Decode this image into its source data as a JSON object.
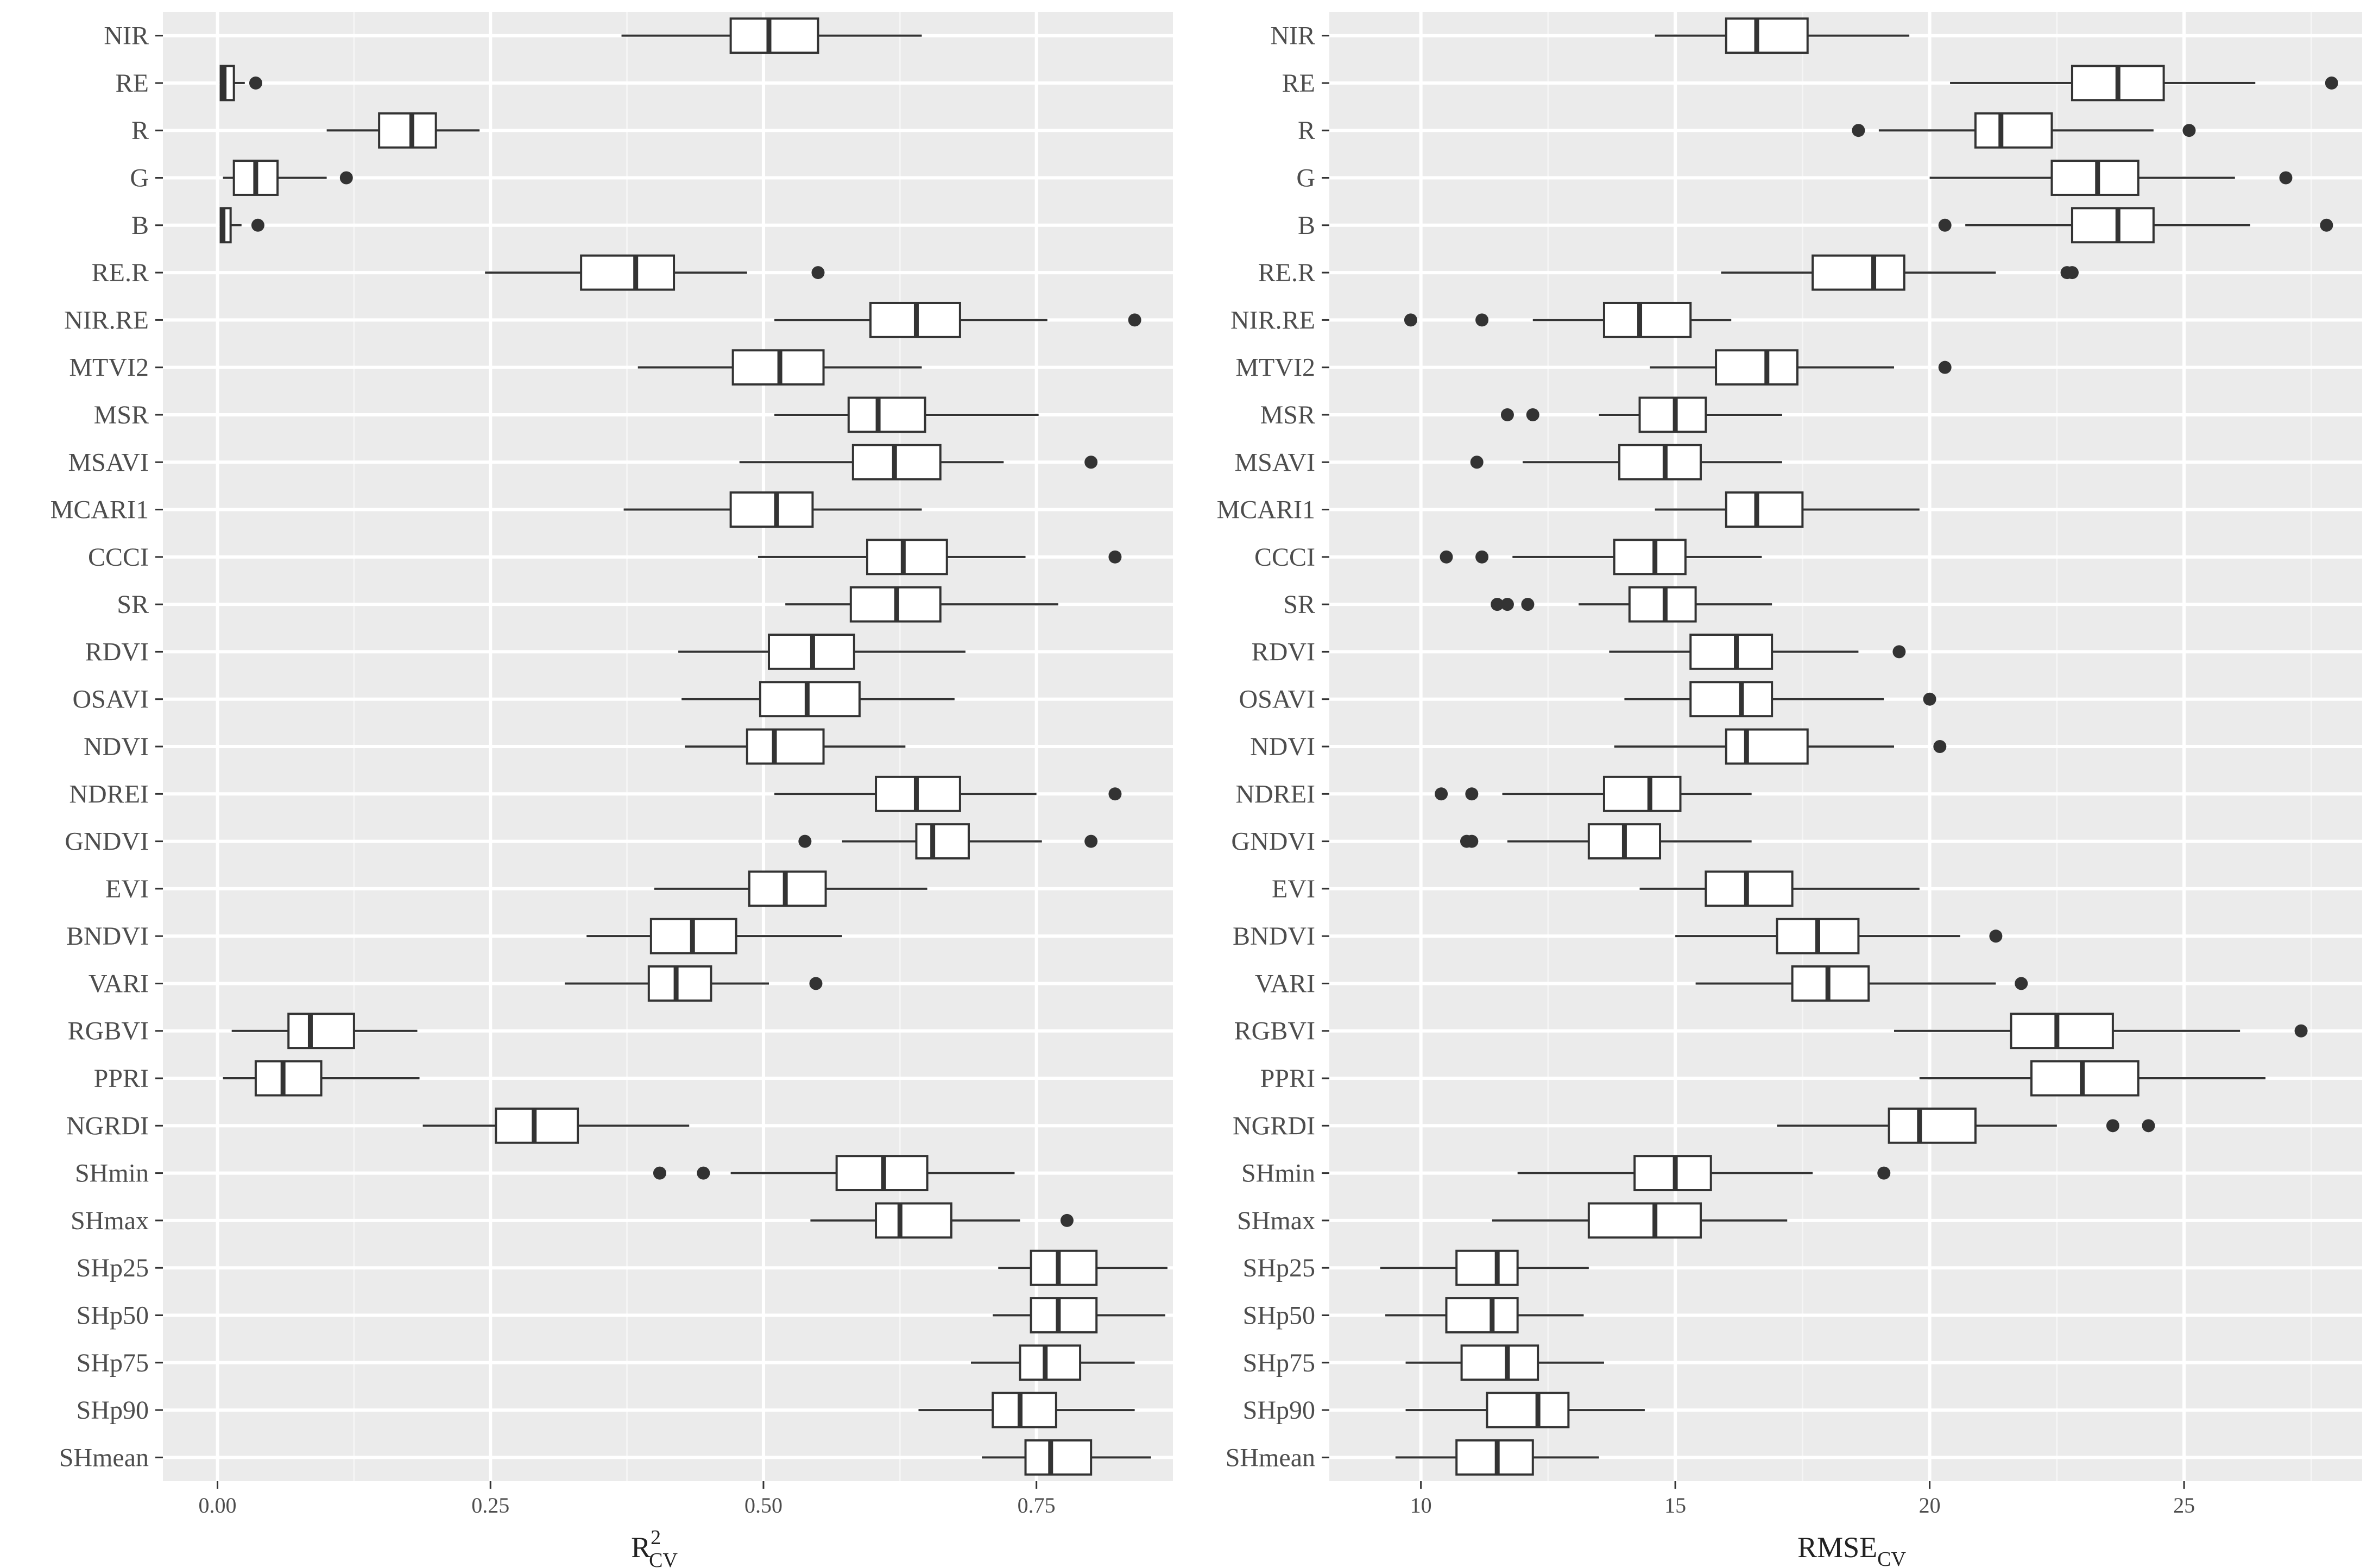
{
  "chart_data": [
    {
      "type": "boxplot",
      "orientation": "horizontal",
      "xlabel": {
        "main": "R",
        "superscript": "2",
        "subscript": "CV"
      },
      "ylabel": "",
      "xlim": [
        -0.05,
        0.875
      ],
      "xticks": [
        0.0,
        0.25,
        0.5,
        0.75
      ],
      "xtick_labels": [
        "0.00",
        "0.25",
        "0.50",
        "0.75"
      ],
      "grid": true,
      "categories": [
        "NIR",
        "RE",
        "R",
        "G",
        "B",
        "RE.R",
        "NIR.RE",
        "MTVI2",
        "MSR",
        "MSAVI",
        "MCARI1",
        "CCCI",
        "SR",
        "RDVI",
        "OSAVI",
        "NDVI",
        "NDREI",
        "GNDVI",
        "EVI",
        "BNDVI",
        "VARI",
        "RGBVI",
        "PPRI",
        "NGRDI",
        "SHmin",
        "SHmax",
        "SHp25",
        "SHp50",
        "SHp75",
        "SHp90",
        "SHmean"
      ],
      "boxes": [
        {
          "lo": 0.37,
          "q1": 0.47,
          "med": 0.505,
          "q3": 0.55,
          "hi": 0.645,
          "out": []
        },
        {
          "lo": 0.002,
          "q1": 0.003,
          "med": 0.006,
          "q3": 0.015,
          "hi": 0.025,
          "out": [
            0.035
          ]
        },
        {
          "lo": 0.1,
          "q1": 0.148,
          "med": 0.178,
          "q3": 0.2,
          "hi": 0.24,
          "out": []
        },
        {
          "lo": 0.005,
          "q1": 0.015,
          "med": 0.035,
          "q3": 0.055,
          "hi": 0.1,
          "out": [
            0.118
          ]
        },
        {
          "lo": 0.002,
          "q1": 0.003,
          "med": 0.005,
          "q3": 0.012,
          "hi": 0.022,
          "out": [
            0.037
          ]
        },
        {
          "lo": 0.245,
          "q1": 0.333,
          "med": 0.383,
          "q3": 0.418,
          "hi": 0.485,
          "out": [
            0.55
          ]
        },
        {
          "lo": 0.51,
          "q1": 0.598,
          "med": 0.64,
          "q3": 0.68,
          "hi": 0.76,
          "out": [
            0.84
          ]
        },
        {
          "lo": 0.385,
          "q1": 0.472,
          "med": 0.515,
          "q3": 0.555,
          "hi": 0.645,
          "out": []
        },
        {
          "lo": 0.51,
          "q1": 0.578,
          "med": 0.605,
          "q3": 0.648,
          "hi": 0.752,
          "out": []
        },
        {
          "lo": 0.478,
          "q1": 0.582,
          "med": 0.62,
          "q3": 0.662,
          "hi": 0.72,
          "out": [
            0.8
          ]
        },
        {
          "lo": 0.372,
          "q1": 0.47,
          "med": 0.512,
          "q3": 0.545,
          "hi": 0.645,
          "out": []
        },
        {
          "lo": 0.495,
          "q1": 0.595,
          "med": 0.628,
          "q3": 0.668,
          "hi": 0.74,
          "out": [
            0.822
          ]
        },
        {
          "lo": 0.52,
          "q1": 0.58,
          "med": 0.622,
          "q3": 0.662,
          "hi": 0.77,
          "out": []
        },
        {
          "lo": 0.422,
          "q1": 0.505,
          "med": 0.545,
          "q3": 0.583,
          "hi": 0.685,
          "out": []
        },
        {
          "lo": 0.425,
          "q1": 0.497,
          "med": 0.54,
          "q3": 0.588,
          "hi": 0.675,
          "out": []
        },
        {
          "lo": 0.428,
          "q1": 0.485,
          "med": 0.51,
          "q3": 0.555,
          "hi": 0.63,
          "out": []
        },
        {
          "lo": 0.51,
          "q1": 0.603,
          "med": 0.64,
          "q3": 0.68,
          "hi": 0.75,
          "out": [
            0.822
          ]
        },
        {
          "lo": 0.572,
          "q1": 0.64,
          "med": 0.655,
          "q3": 0.688,
          "hi": 0.755,
          "out": [
            0.538,
            0.8
          ]
        },
        {
          "lo": 0.4,
          "q1": 0.487,
          "med": 0.52,
          "q3": 0.557,
          "hi": 0.65,
          "out": []
        },
        {
          "lo": 0.338,
          "q1": 0.397,
          "med": 0.435,
          "q3": 0.475,
          "hi": 0.572,
          "out": []
        },
        {
          "lo": 0.318,
          "q1": 0.395,
          "med": 0.42,
          "q3": 0.452,
          "hi": 0.505,
          "out": [
            0.548
          ]
        },
        {
          "lo": 0.013,
          "q1": 0.065,
          "med": 0.085,
          "q3": 0.125,
          "hi": 0.183,
          "out": []
        },
        {
          "lo": 0.005,
          "q1": 0.035,
          "med": 0.06,
          "q3": 0.095,
          "hi": 0.185,
          "out": []
        },
        {
          "lo": 0.188,
          "q1": 0.255,
          "med": 0.29,
          "q3": 0.33,
          "hi": 0.432,
          "out": []
        },
        {
          "lo": 0.47,
          "q1": 0.567,
          "med": 0.61,
          "q3": 0.65,
          "hi": 0.73,
          "out": [
            0.405,
            0.445
          ]
        },
        {
          "lo": 0.543,
          "q1": 0.603,
          "med": 0.625,
          "q3": 0.672,
          "hi": 0.735,
          "out": [
            0.778
          ]
        },
        {
          "lo": 0.715,
          "q1": 0.745,
          "med": 0.77,
          "q3": 0.805,
          "hi": 0.87,
          "out": []
        },
        {
          "lo": 0.71,
          "q1": 0.745,
          "med": 0.77,
          "q3": 0.805,
          "hi": 0.868,
          "out": []
        },
        {
          "lo": 0.69,
          "q1": 0.735,
          "med": 0.758,
          "q3": 0.79,
          "hi": 0.84,
          "out": []
        },
        {
          "lo": 0.642,
          "q1": 0.71,
          "med": 0.735,
          "q3": 0.768,
          "hi": 0.84,
          "out": []
        },
        {
          "lo": 0.7,
          "q1": 0.74,
          "med": 0.763,
          "q3": 0.8,
          "hi": 0.855,
          "out": []
        }
      ]
    },
    {
      "type": "boxplot",
      "orientation": "horizontal",
      "xlabel": {
        "main": "RMSE",
        "subscript": "CV"
      },
      "ylabel": "",
      "xlim": [
        8.2,
        28.5
      ],
      "xticks": [
        10,
        15,
        20,
        25
      ],
      "xtick_labels": [
        "10",
        "15",
        "20",
        "25"
      ],
      "grid": true,
      "categories": [
        "NIR",
        "RE",
        "R",
        "G",
        "B",
        "RE.R",
        "NIR.RE",
        "MTVI2",
        "MSR",
        "MSAVI",
        "MCARI1",
        "CCCI",
        "SR",
        "RDVI",
        "OSAVI",
        "NDVI",
        "NDREI",
        "GNDVI",
        "EVI",
        "BNDVI",
        "VARI",
        "RGBVI",
        "PPRI",
        "NGRDI",
        "SHmin",
        "SHmax",
        "SHp25",
        "SHp50",
        "SHp75",
        "SHp90",
        "SHmean"
      ],
      "boxes": [
        {
          "lo": 14.6,
          "q1": 16.0,
          "med": 16.6,
          "q3": 17.6,
          "hi": 19.6,
          "out": []
        },
        {
          "lo": 20.4,
          "q1": 22.8,
          "med": 23.7,
          "q3": 24.6,
          "hi": 26.4,
          "out": [
            27.9
          ]
        },
        {
          "lo": 19.0,
          "q1": 20.9,
          "med": 21.4,
          "q3": 22.4,
          "hi": 24.4,
          "out": [
            18.6,
            25.1
          ]
        },
        {
          "lo": 20.0,
          "q1": 22.4,
          "med": 23.3,
          "q3": 24.1,
          "hi": 26.0,
          "out": [
            27.0
          ]
        },
        {
          "lo": 20.7,
          "q1": 22.8,
          "med": 23.7,
          "q3": 24.4,
          "hi": 26.3,
          "out": [
            20.3,
            27.8
          ]
        },
        {
          "lo": 15.9,
          "q1": 17.7,
          "med": 18.9,
          "q3": 19.5,
          "hi": 21.3,
          "out": [
            22.7,
            22.8
          ]
        },
        {
          "lo": 12.2,
          "q1": 13.6,
          "med": 14.3,
          "q3": 15.3,
          "hi": 16.1,
          "out": [
            9.8,
            11.2
          ]
        },
        {
          "lo": 14.5,
          "q1": 15.8,
          "med": 16.8,
          "q3": 17.4,
          "hi": 19.3,
          "out": [
            20.3
          ]
        },
        {
          "lo": 13.5,
          "q1": 14.3,
          "med": 15.0,
          "q3": 15.6,
          "hi": 17.1,
          "out": [
            11.7,
            12.2
          ]
        },
        {
          "lo": 12.0,
          "q1": 13.9,
          "med": 14.8,
          "q3": 15.5,
          "hi": 17.1,
          "out": [
            11.1
          ]
        },
        {
          "lo": 14.6,
          "q1": 16.0,
          "med": 16.6,
          "q3": 17.5,
          "hi": 19.8,
          "out": []
        },
        {
          "lo": 11.8,
          "q1": 13.8,
          "med": 14.6,
          "q3": 15.2,
          "hi": 16.7,
          "out": [
            10.5,
            11.2
          ]
        },
        {
          "lo": 13.1,
          "q1": 14.1,
          "med": 14.8,
          "q3": 15.4,
          "hi": 16.9,
          "out": [
            11.5,
            11.7,
            12.1
          ]
        },
        {
          "lo": 13.7,
          "q1": 15.3,
          "med": 16.2,
          "q3": 16.9,
          "hi": 18.6,
          "out": [
            19.4
          ]
        },
        {
          "lo": 14.0,
          "q1": 15.3,
          "med": 16.3,
          "q3": 16.9,
          "hi": 19.1,
          "out": [
            20.0
          ]
        },
        {
          "lo": 13.8,
          "q1": 16.0,
          "med": 16.4,
          "q3": 17.6,
          "hi": 19.3,
          "out": [
            20.2
          ]
        },
        {
          "lo": 11.6,
          "q1": 13.6,
          "med": 14.5,
          "q3": 15.1,
          "hi": 16.5,
          "out": [
            10.4,
            11.0
          ]
        },
        {
          "lo": 11.7,
          "q1": 13.3,
          "med": 14.0,
          "q3": 14.7,
          "hi": 16.5,
          "out": [
            10.9,
            11.0
          ]
        },
        {
          "lo": 14.3,
          "q1": 15.6,
          "med": 16.4,
          "q3": 17.3,
          "hi": 19.8,
          "out": []
        },
        {
          "lo": 15.0,
          "q1": 17.0,
          "med": 17.8,
          "q3": 18.6,
          "hi": 20.6,
          "out": [
            21.3
          ]
        },
        {
          "lo": 15.4,
          "q1": 17.3,
          "med": 18.0,
          "q3": 18.8,
          "hi": 21.3,
          "out": [
            21.8
          ]
        },
        {
          "lo": 19.3,
          "q1": 21.6,
          "med": 22.5,
          "q3": 23.6,
          "hi": 26.1,
          "out": [
            27.3
          ]
        },
        {
          "lo": 19.8,
          "q1": 22.0,
          "med": 23.0,
          "q3": 24.1,
          "hi": 26.6,
          "out": []
        },
        {
          "lo": 17.0,
          "q1": 19.2,
          "med": 19.8,
          "q3": 20.9,
          "hi": 22.5,
          "out": [
            23.6,
            24.3
          ]
        },
        {
          "lo": 11.9,
          "q1": 14.2,
          "med": 15.0,
          "q3": 15.7,
          "hi": 17.7,
          "out": [
            19.1
          ]
        },
        {
          "lo": 11.4,
          "q1": 13.3,
          "med": 14.6,
          "q3": 15.5,
          "hi": 17.2,
          "out": []
        },
        {
          "lo": 9.2,
          "q1": 10.7,
          "med": 11.5,
          "q3": 11.9,
          "hi": 13.3,
          "out": []
        },
        {
          "lo": 9.3,
          "q1": 10.5,
          "med": 11.4,
          "q3": 11.9,
          "hi": 13.2,
          "out": []
        },
        {
          "lo": 9.7,
          "q1": 10.8,
          "med": 11.7,
          "q3": 12.3,
          "hi": 13.6,
          "out": []
        },
        {
          "lo": 9.7,
          "q1": 11.3,
          "med": 12.3,
          "q3": 12.9,
          "hi": 14.4,
          "out": []
        },
        {
          "lo": 9.5,
          "q1": 10.7,
          "med": 11.5,
          "q3": 12.2,
          "hi": 13.5,
          "out": []
        }
      ]
    }
  ]
}
